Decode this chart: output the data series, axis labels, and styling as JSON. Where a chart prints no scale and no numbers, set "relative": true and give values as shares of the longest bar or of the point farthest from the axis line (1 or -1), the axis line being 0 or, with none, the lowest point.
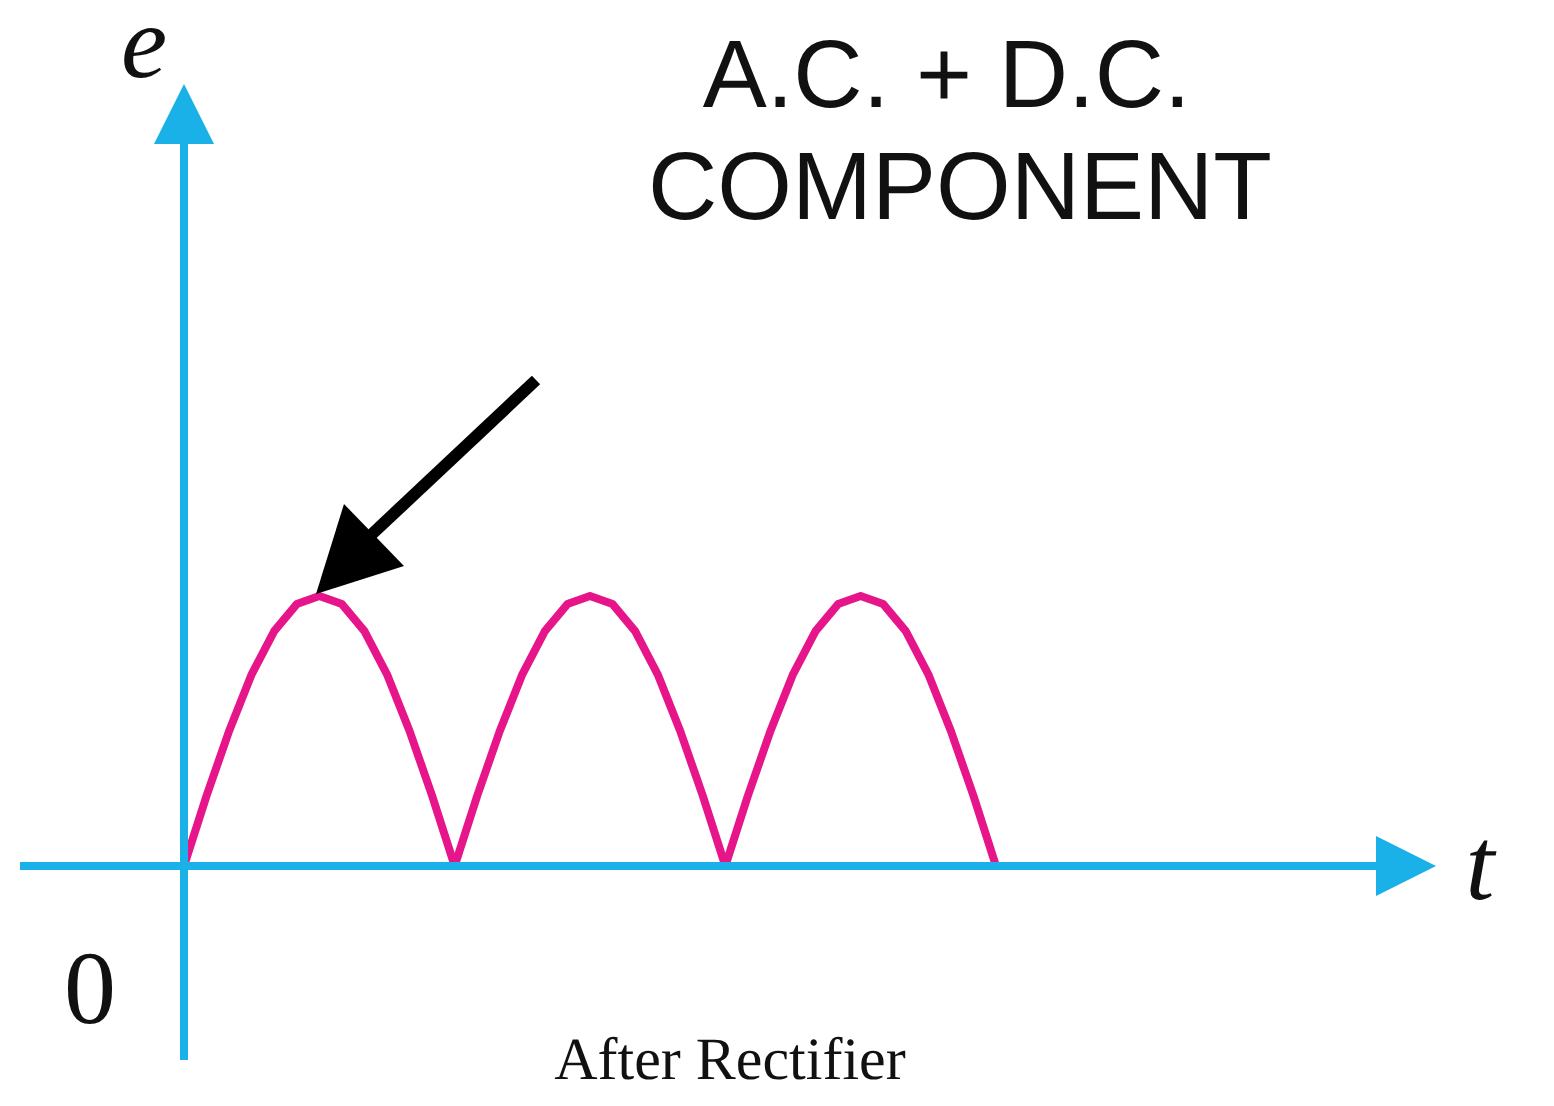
{
  "chart_data": {
    "type": "line",
    "relative": true,
    "xlabel": "t",
    "ylabel": "e",
    "categories": [
      null,
      null,
      null,
      null,
      null,
      null,
      null,
      null,
      null,
      null,
      null,
      null,
      null,
      null,
      null,
      null,
      null,
      null,
      null,
      null,
      null,
      null,
      null,
      null,
      null,
      null,
      null,
      null,
      null,
      null,
      null,
      null,
      null,
      null,
      null,
      null,
      null
    ],
    "series": [
      {
        "color": "#e6168a",
        "values": [
          0,
          0.26,
          0.5,
          0.71,
          0.87,
          0.97,
          1,
          0.97,
          0.87,
          0.71,
          0.5,
          0.26,
          0,
          0.26,
          0.5,
          0.71,
          0.87,
          0.97,
          1,
          0.97,
          0.87,
          0.71,
          0.5,
          0.26,
          0,
          0.26,
          0.5,
          0.71,
          0.87,
          0.97,
          1,
          0.97,
          0.87,
          0.71,
          0.5,
          0.26,
          0
        ]
      }
    ],
    "annotations": [
      "A.C. + D.C. COMPONENT",
      "0",
      "After Rectifier"
    ],
    "grid": false,
    "marker": "none",
    "line_style": "solid"
  }
}
